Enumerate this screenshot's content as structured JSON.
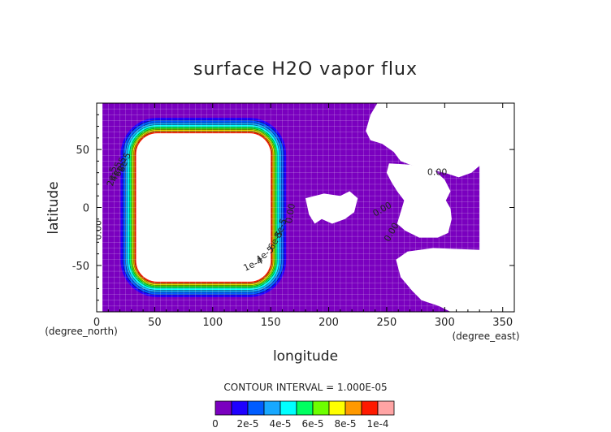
{
  "chart_data": {
    "type": "heatmap",
    "title": "surface H2O vapor flux",
    "xlabel": "longitude",
    "ylabel": "latitude",
    "x_unit": "(degree_east)",
    "y_unit": "(degree_north)",
    "xlim": [
      0,
      360
    ],
    "ylim": [
      -90,
      90
    ],
    "x_ticks": [
      0,
      50,
      100,
      150,
      200,
      250,
      300,
      350
    ],
    "y_ticks": [
      -50,
      0,
      50
    ],
    "contour_interval_text": "CONTOUR INTERVAL = 1.000E-05",
    "colorbar": {
      "levels": [
        0,
        1e-05,
        2e-05,
        3e-05,
        4e-05,
        5e-05,
        6e-05,
        7e-05,
        8e-05,
        9e-05,
        0.0001
      ],
      "tick_labels": [
        "0",
        "2e-5",
        "4e-5",
        "6e-5",
        "8e-5",
        "1e-4"
      ],
      "colors": [
        "#7a00bf",
        "#1f00ff",
        "#005cff",
        "#18a8ff",
        "#00ffff",
        "#00ff60",
        "#6dff00",
        "#ffff00",
        "#ff9900",
        "#ff1a00",
        "#ffa4a4"
      ]
    },
    "contour_labels": [
      "0.00",
      "1e-4",
      "4e-5",
      "6e-5",
      "8e-5",
      "2e-5",
      "4e-5",
      "6e-5",
      "8e-5",
      "0.00",
      "0.00",
      "0.00",
      "0.00"
    ],
    "ring_center": [
      92,
      0
    ],
    "ring_half_widths_deg": {
      "lon": 58,
      "lat": 64
    },
    "notes": "field ~1e-5 over purple background; ring of high values (up to >9e-5) around an empty region; missing (white) areas to the east"
  }
}
